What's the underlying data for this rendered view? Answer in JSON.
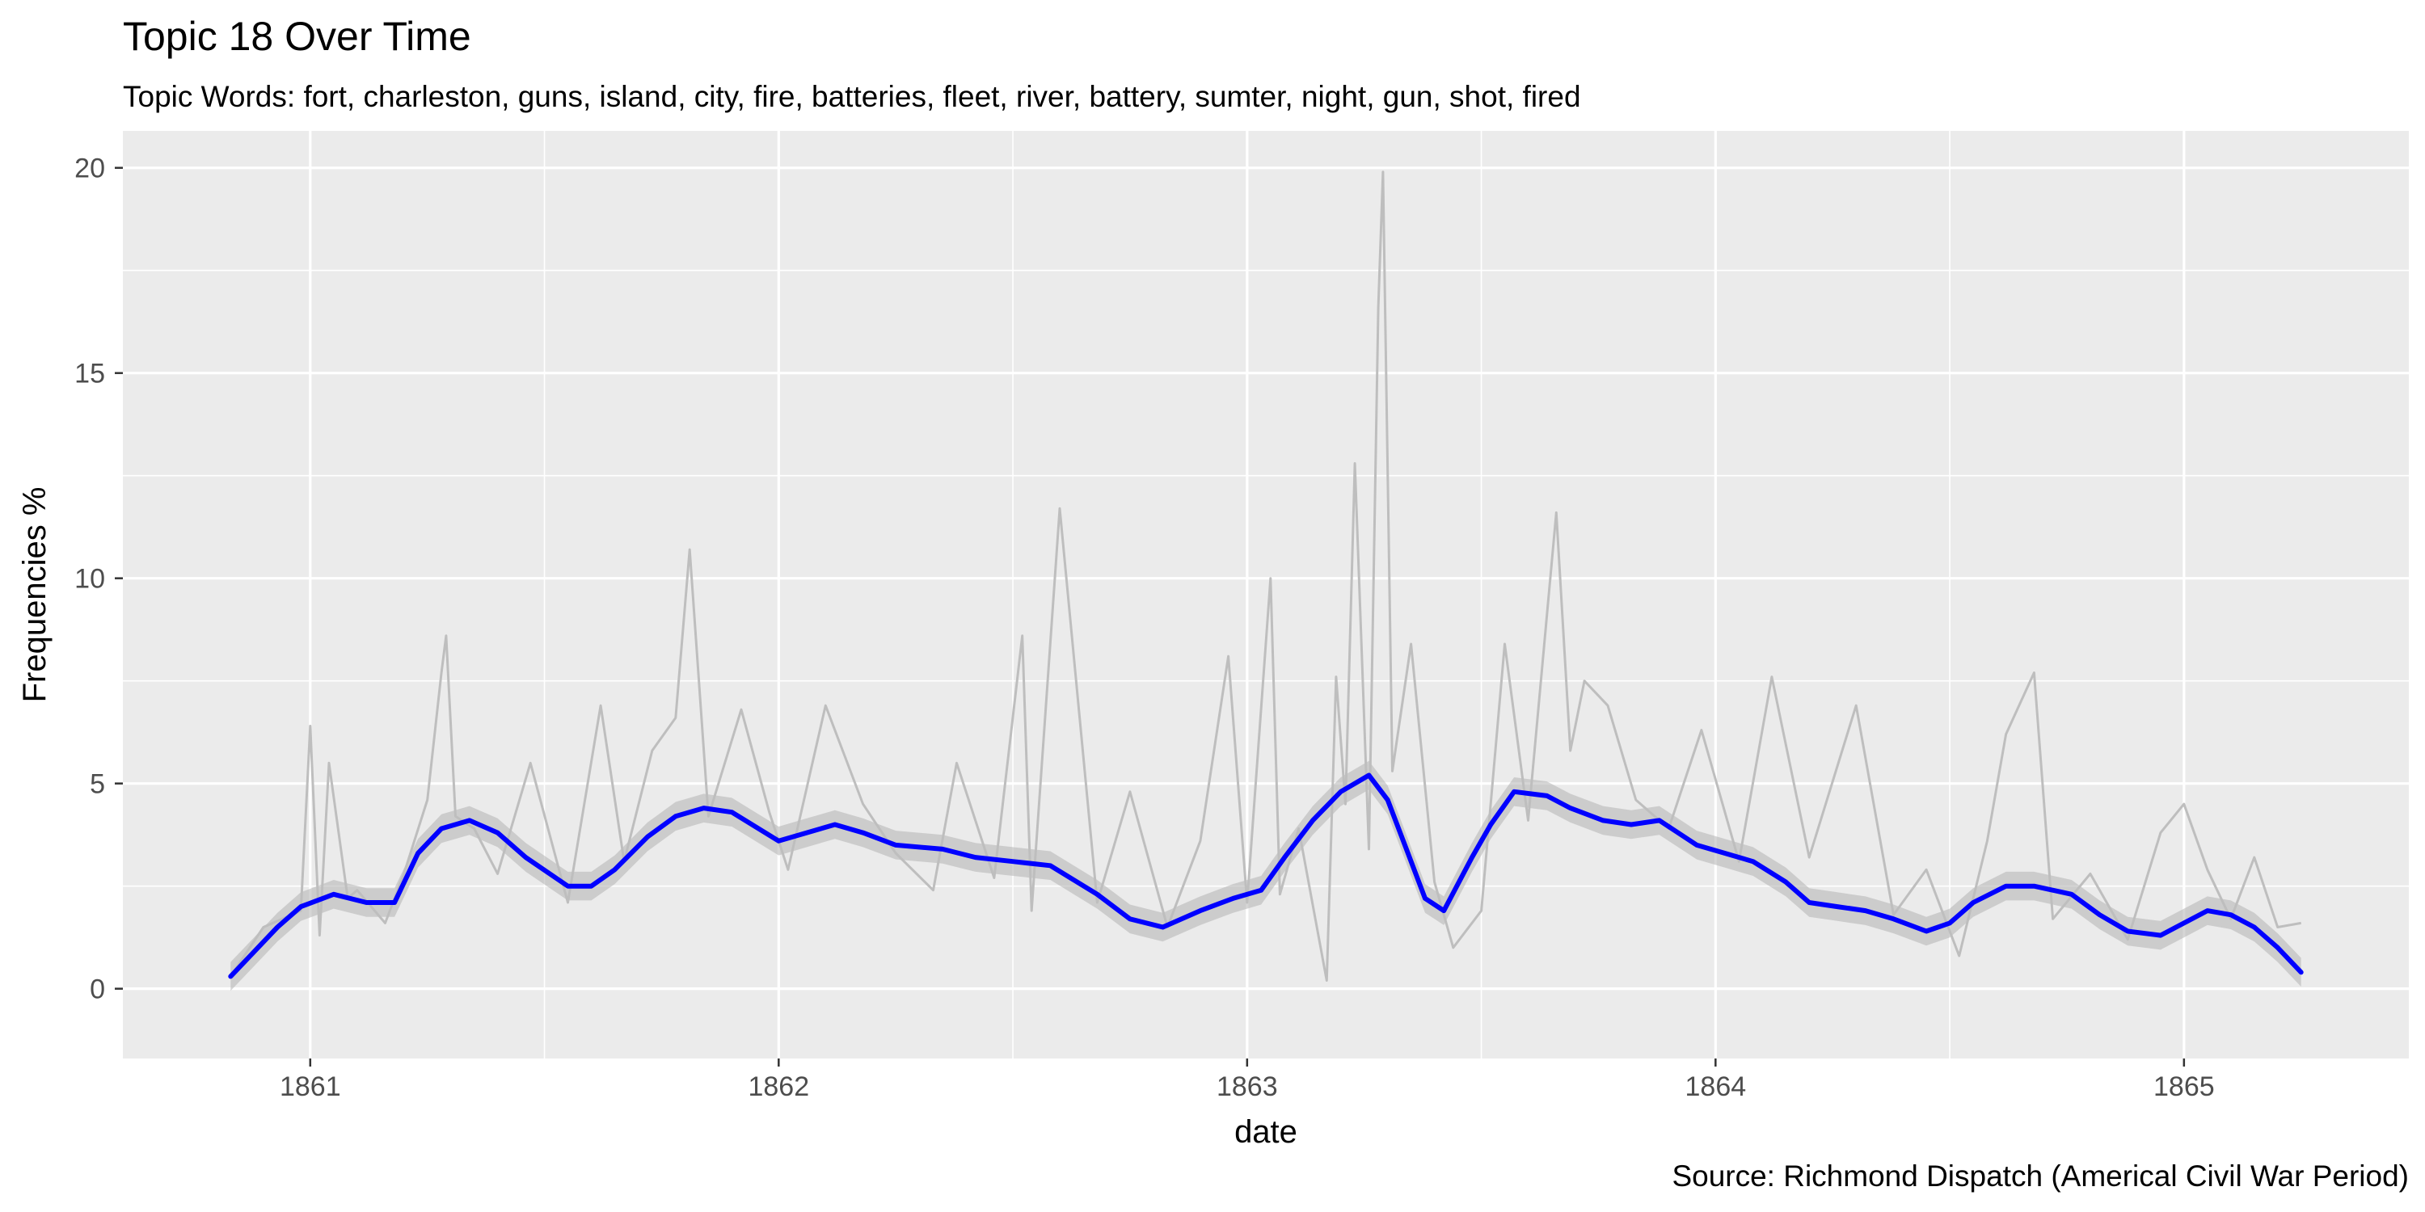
{
  "chart_data": {
    "type": "line",
    "title": "Topic 18 Over Time",
    "subtitle": "Topic Words: fort, charleston, guns, island, city, fire, batteries, fleet, river, battery, sumter, night, gun, shot, fired",
    "caption": "Source: Richmond Dispatch (Americal Civil War Period)",
    "xlabel": "date",
    "ylabel": "Frequencies %",
    "xlim": [
      1860.6,
      1865.48
    ],
    "ylim": [
      -1.7,
      20.9
    ],
    "x_ticks": [
      1861,
      1862,
      1863,
      1864,
      1865
    ],
    "x_tick_labels": [
      "1861",
      "1862",
      "1863",
      "1864",
      "1865"
    ],
    "y_ticks": [
      0,
      5,
      10,
      15,
      20
    ],
    "y_tick_labels": [
      "0",
      "5",
      "10",
      "15",
      "20"
    ],
    "grid": true,
    "colors": {
      "panel": "#ebebeb",
      "grid": "#ffffff",
      "raw": "#bebebe",
      "ribbon": "#b3b3b3",
      "smooth": "#0000ff"
    },
    "series": [
      {
        "kind": "raw",
        "x": [
          1860.83,
          1860.9,
          1860.98,
          1861.0,
          1861.02,
          1861.04,
          1861.08,
          1861.1,
          1861.16,
          1861.2,
          1861.25,
          1861.28,
          1861.29,
          1861.31,
          1861.35,
          1861.4,
          1861.47,
          1861.55,
          1861.62,
          1861.67,
          1861.73,
          1861.78,
          1861.81,
          1861.85,
          1861.92,
          1861.98,
          1862.02,
          1862.1,
          1862.18,
          1862.25,
          1862.33,
          1862.38,
          1862.46,
          1862.52,
          1862.54,
          1862.6,
          1862.68,
          1862.75,
          1862.83,
          1862.9,
          1862.96,
          1863.0,
          1863.05,
          1863.07,
          1863.11,
          1863.17,
          1863.19,
          1863.21,
          1863.23,
          1863.26,
          1863.28,
          1863.29,
          1863.31,
          1863.35,
          1863.4,
          1863.44,
          1863.5,
          1863.55,
          1863.6,
          1863.66,
          1863.69,
          1863.72,
          1863.77,
          1863.83,
          1863.9,
          1863.97,
          1864.05,
          1864.12,
          1864.2,
          1864.3,
          1864.38,
          1864.45,
          1864.52,
          1864.58,
          1864.62,
          1864.68,
          1864.72,
          1864.8,
          1864.88,
          1864.95,
          1865.0,
          1865.05,
          1865.1,
          1865.15,
          1865.2,
          1865.25
        ],
        "values": [
          0.3,
          1.5,
          1.9,
          6.4,
          1.3,
          5.5,
          2.2,
          2.4,
          1.6,
          2.8,
          4.6,
          7.7,
          8.6,
          4.2,
          3.9,
          2.8,
          5.5,
          2.1,
          6.9,
          3.1,
          5.8,
          6.6,
          10.7,
          4.2,
          6.8,
          4.3,
          2.9,
          6.9,
          4.5,
          3.3,
          2.4,
          5.5,
          2.7,
          8.6,
          1.9,
          11.7,
          2.1,
          4.8,
          1.5,
          3.6,
          8.1,
          2.1,
          10.0,
          2.3,
          3.9,
          0.2,
          7.6,
          4.5,
          12.8,
          3.4,
          16.6,
          19.9,
          5.3,
          8.4,
          2.6,
          1.0,
          1.9,
          8.4,
          4.1,
          11.6,
          5.8,
          7.5,
          6.9,
          4.6,
          3.9,
          6.3,
          3.1,
          7.6,
          3.2,
          6.9,
          1.8,
          2.9,
          0.8,
          3.6,
          6.2,
          7.7,
          1.7,
          2.8,
          1.2,
          3.8,
          4.5,
          2.9,
          1.7,
          3.2,
          1.5,
          1.6
        ]
      },
      {
        "kind": "smooth",
        "x": [
          1860.83,
          1860.88,
          1860.93,
          1860.98,
          1861.05,
          1861.12,
          1861.18,
          1861.23,
          1861.28,
          1861.34,
          1861.4,
          1861.46,
          1861.55,
          1861.6,
          1861.65,
          1861.72,
          1861.78,
          1861.84,
          1861.9,
          1862.0,
          1862.06,
          1862.12,
          1862.18,
          1862.25,
          1862.35,
          1862.42,
          1862.5,
          1862.58,
          1862.68,
          1862.75,
          1862.82,
          1862.9,
          1862.97,
          1863.03,
          1863.08,
          1863.14,
          1863.2,
          1863.26,
          1863.3,
          1863.34,
          1863.38,
          1863.42,
          1863.48,
          1863.52,
          1863.57,
          1863.64,
          1863.69,
          1863.76,
          1863.82,
          1863.88,
          1863.96,
          1864.02,
          1864.08,
          1864.15,
          1864.2,
          1864.26,
          1864.32,
          1864.38,
          1864.45,
          1864.5,
          1864.55,
          1864.62,
          1864.68,
          1864.76,
          1864.82,
          1864.88,
          1864.95,
          1865.0,
          1865.05,
          1865.1,
          1865.15,
          1865.2,
          1865.25
        ],
        "values": [
          0.3,
          0.9,
          1.5,
          2.0,
          2.3,
          2.1,
          2.1,
          3.3,
          3.9,
          4.1,
          3.8,
          3.2,
          2.5,
          2.5,
          2.9,
          3.7,
          4.2,
          4.4,
          4.3,
          3.6,
          3.8,
          4.0,
          3.8,
          3.5,
          3.4,
          3.2,
          3.1,
          3.0,
          2.3,
          1.7,
          1.5,
          1.9,
          2.2,
          2.4,
          3.2,
          4.1,
          4.8,
          5.2,
          4.6,
          3.4,
          2.2,
          1.9,
          3.2,
          4.0,
          4.8,
          4.7,
          4.4,
          4.1,
          4.0,
          4.1,
          3.5,
          3.3,
          3.1,
          2.6,
          2.1,
          2.0,
          1.9,
          1.7,
          1.4,
          1.6,
          2.1,
          2.5,
          2.5,
          2.3,
          1.8,
          1.4,
          1.3,
          1.6,
          1.9,
          1.8,
          1.5,
          1.0,
          0.4
        ]
      }
    ]
  }
}
